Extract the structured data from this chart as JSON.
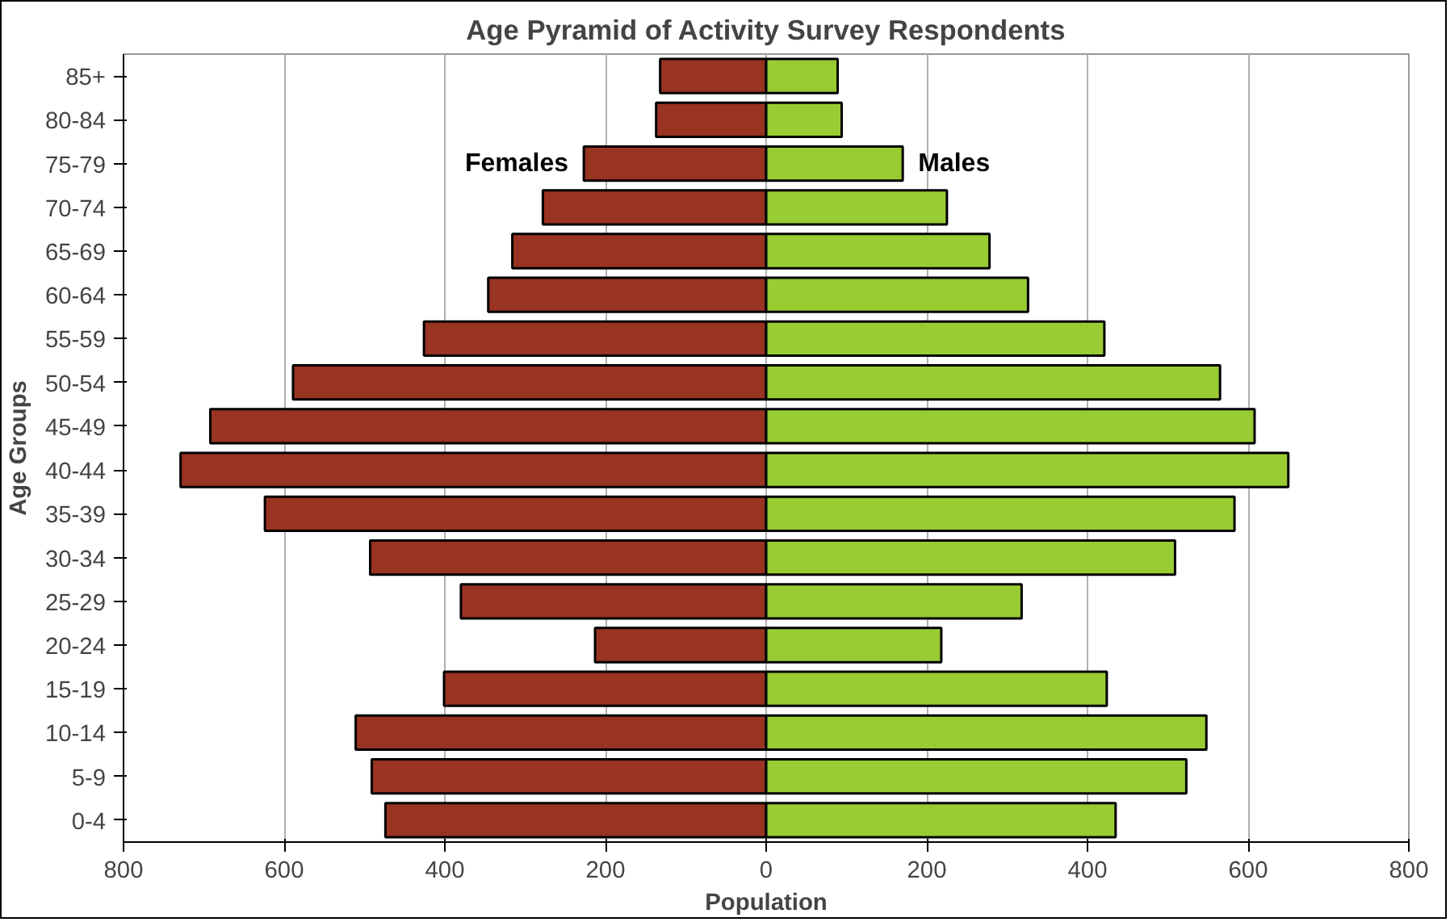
{
  "chart_data": {
    "type": "bar",
    "orientation": "horizontal",
    "stacked": true,
    "title": "Age Pyramid of Activity Survey Respondents",
    "xlabel": "Population",
    "ylabel": "Age Groups",
    "categories": [
      "85+",
      "80-84",
      "75-79",
      "70-74",
      "65-69",
      "60-64",
      "55-59",
      "50-54",
      "45-49",
      "40-44",
      "35-39",
      "30-34",
      "25-29",
      "20-24",
      "15-19",
      "10-14",
      "5-9",
      "0-4"
    ],
    "series": [
      {
        "name": "Females",
        "color": "#993322",
        "values": [
          -132,
          -137,
          -227,
          -278,
          -316,
          -346,
          -426,
          -589,
          -692,
          -729,
          -624,
          -493,
          -380,
          -213,
          -401,
          -511,
          -491,
          -474
        ]
      },
      {
        "name": "Males",
        "color": "#99cc33",
        "values": [
          89,
          94,
          170,
          225,
          278,
          326,
          421,
          565,
          608,
          650,
          583,
          509,
          318,
          218,
          424,
          548,
          523,
          435
        ]
      }
    ],
    "xlim": [
      -800,
      800
    ],
    "xticks": [
      {
        "value": -800,
        "label": "800"
      },
      {
        "value": -600,
        "label": "600"
      },
      {
        "value": -400,
        "label": "400"
      },
      {
        "value": -200,
        "label": "200"
      },
      0,
      200,
      400,
      600,
      800
    ],
    "grid": "x"
  }
}
